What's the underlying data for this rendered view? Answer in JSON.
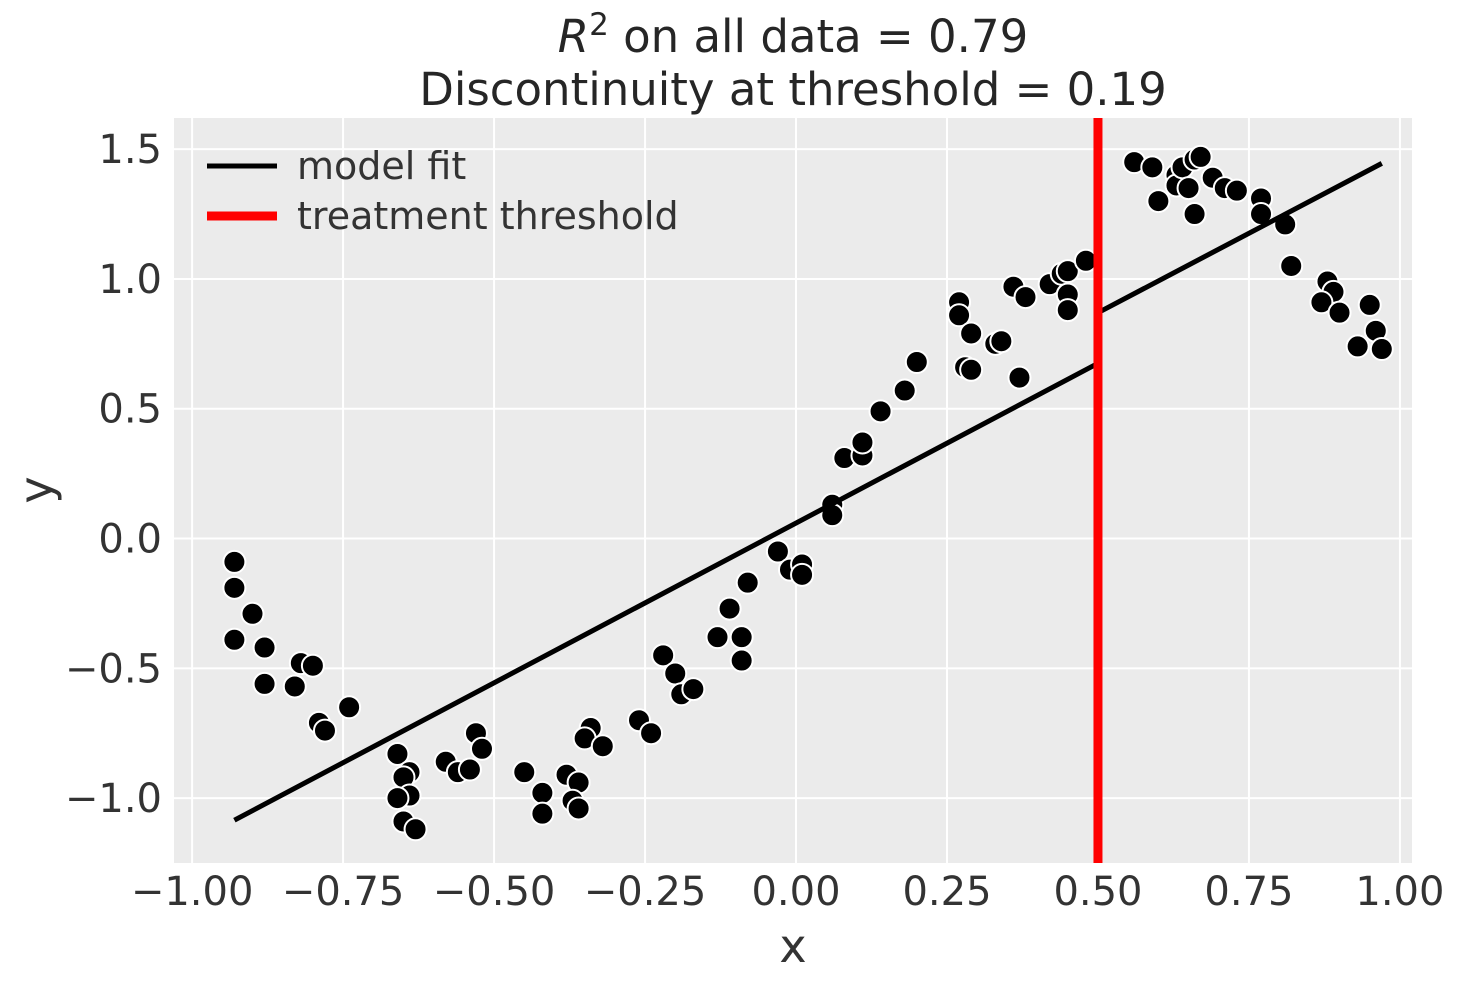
{
  "chart_data": {
    "type": "scatter",
    "title": {
      "line1_symbol": "R",
      "line1_superscript": "2",
      "line1_rest": " on all data = 0.79",
      "line2": "Discontinuity at threshold = 0.19"
    },
    "r_squared_all_data": 0.79,
    "discontinuity_at_threshold": 0.19,
    "threshold_x": 0.5,
    "xlabel": "x",
    "ylabel": "y",
    "xlim": [
      -1.03,
      1.02
    ],
    "ylim": [
      -1.25,
      1.62
    ],
    "x_ticks": {
      "values": [
        -1.0,
        -0.75,
        -0.5,
        -0.25,
        0.0,
        0.25,
        0.5,
        0.75,
        1.0
      ],
      "labels": [
        "−1.00",
        "−0.75",
        "−0.50",
        "−0.25",
        "0.00",
        "0.25",
        "0.50",
        "0.75",
        "1.00"
      ]
    },
    "y_ticks": {
      "values": [
        -1.0,
        -0.5,
        0.0,
        0.5,
        1.0,
        1.5
      ],
      "labels": [
        "−1.0",
        "−0.5",
        "0.0",
        "0.5",
        "1.0",
        "1.5"
      ]
    },
    "grid": {
      "visible": true,
      "color": "#ffffff"
    },
    "plot_background": "#ebebeb",
    "figure_background": "#ffffff",
    "legend": {
      "position": "upper-left",
      "frame": false,
      "entries": [
        {
          "label": "model fit",
          "color": "#000000",
          "line_width": 5
        },
        {
          "label": "treatment threshold",
          "color": "#ff0000",
          "line_width": 9
        }
      ]
    },
    "model_fit_line": {
      "color": "#000000",
      "width": 5,
      "points": [
        [
          -0.93,
          -1.085
        ],
        [
          0.5,
          0.675
        ],
        [
          0.5,
          0.87
        ],
        [
          0.97,
          1.445
        ]
      ]
    },
    "threshold_line": {
      "color": "#ff0000",
      "x": 0.5,
      "width": 9
    },
    "scatter_points": {
      "color": "#000000",
      "edge_color": "#ffffff",
      "marker_radius": 11,
      "points": [
        [
          -0.93,
          -0.09
        ],
        [
          -0.93,
          -0.19
        ],
        [
          -0.9,
          -0.29
        ],
        [
          -0.93,
          -0.39
        ],
        [
          -0.88,
          -0.42
        ],
        [
          -0.82,
          -0.48
        ],
        [
          -0.8,
          -0.49
        ],
        [
          -0.88,
          -0.56
        ],
        [
          -0.83,
          -0.57
        ],
        [
          -0.74,
          -0.65
        ],
        [
          -0.79,
          -0.71
        ],
        [
          -0.78,
          -0.74
        ],
        [
          -0.66,
          -0.83
        ],
        [
          -0.64,
          -0.9
        ],
        [
          -0.65,
          -0.92
        ],
        [
          -0.64,
          -0.99
        ],
        [
          -0.66,
          -1.0
        ],
        [
          -0.65,
          -1.09
        ],
        [
          -0.63,
          -1.12
        ],
        [
          -0.58,
          -0.86
        ],
        [
          -0.56,
          -0.9
        ],
        [
          -0.54,
          -0.89
        ],
        [
          -0.53,
          -0.75
        ],
        [
          -0.52,
          -0.81
        ],
        [
          -0.45,
          -0.9
        ],
        [
          -0.42,
          -0.98
        ],
        [
          -0.42,
          -1.06
        ],
        [
          -0.38,
          -0.91
        ],
        [
          -0.36,
          -0.94
        ],
        [
          -0.37,
          -1.01
        ],
        [
          -0.36,
          -1.04
        ],
        [
          -0.34,
          -0.73
        ],
        [
          -0.35,
          -0.77
        ],
        [
          -0.32,
          -0.8
        ],
        [
          -0.26,
          -0.7
        ],
        [
          -0.24,
          -0.75
        ],
        [
          -0.22,
          -0.45
        ],
        [
          -0.2,
          -0.52
        ],
        [
          -0.19,
          -0.6
        ],
        [
          -0.17,
          -0.58
        ],
        [
          -0.13,
          -0.38
        ],
        [
          -0.11,
          -0.27
        ],
        [
          -0.09,
          -0.38
        ],
        [
          -0.09,
          -0.47
        ],
        [
          -0.08,
          -0.17
        ],
        [
          -0.03,
          -0.05
        ],
        [
          -0.01,
          -0.12
        ],
        [
          0.01,
          -0.1
        ],
        [
          0.01,
          -0.14
        ],
        [
          0.06,
          0.13
        ],
        [
          0.06,
          0.09
        ],
        [
          0.08,
          0.31
        ],
        [
          0.11,
          0.32
        ],
        [
          0.11,
          0.37
        ],
        [
          0.14,
          0.49
        ],
        [
          0.18,
          0.57
        ],
        [
          0.2,
          0.68
        ],
        [
          0.28,
          0.66
        ],
        [
          0.29,
          0.65
        ],
        [
          0.37,
          0.62
        ],
        [
          0.27,
          0.91
        ],
        [
          0.27,
          0.86
        ],
        [
          0.29,
          0.79
        ],
        [
          0.33,
          0.75
        ],
        [
          0.34,
          0.76
        ],
        [
          0.36,
          0.97
        ],
        [
          0.38,
          0.93
        ],
        [
          0.42,
          0.98
        ],
        [
          0.44,
          1.02
        ],
        [
          0.45,
          1.03
        ],
        [
          0.45,
          0.94
        ],
        [
          0.45,
          0.88
        ],
        [
          0.48,
          1.07
        ],
        [
          0.56,
          1.45
        ],
        [
          0.59,
          1.43
        ],
        [
          0.6,
          1.3
        ],
        [
          0.63,
          1.4
        ],
        [
          0.63,
          1.36
        ],
        [
          0.64,
          1.43
        ],
        [
          0.65,
          1.35
        ],
        [
          0.66,
          1.46
        ],
        [
          0.67,
          1.47
        ],
        [
          0.66,
          1.25
        ],
        [
          0.69,
          1.39
        ],
        [
          0.71,
          1.35
        ],
        [
          0.73,
          1.34
        ],
        [
          0.77,
          1.31
        ],
        [
          0.77,
          1.25
        ],
        [
          0.81,
          1.21
        ],
        [
          0.82,
          1.05
        ],
        [
          0.88,
          0.99
        ],
        [
          0.89,
          0.95
        ],
        [
          0.87,
          0.91
        ],
        [
          0.9,
          0.87
        ],
        [
          0.95,
          0.9
        ],
        [
          0.96,
          0.8
        ],
        [
          0.93,
          0.74
        ],
        [
          0.97,
          0.73
        ]
      ]
    }
  },
  "style": {
    "plot_bg": "#ebebeb",
    "grid_color": "#ffffff",
    "tick_color": "#333333",
    "title_color": "#262626",
    "accent_red": "#ff0000",
    "line_black": "#000000"
  }
}
